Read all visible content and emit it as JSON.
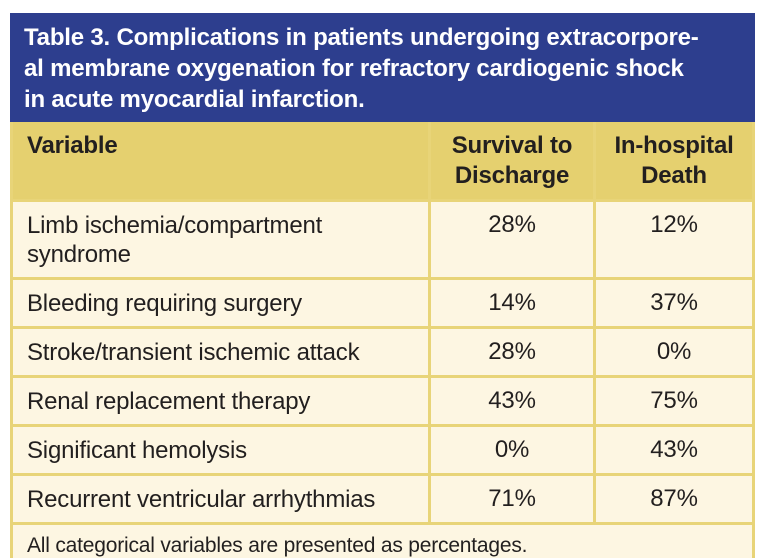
{
  "theme": {
    "header_blue": "#2d3e8e",
    "column_header_gold": "#e5d06f",
    "row_cream": "#fdf6e2",
    "border_gold": "#e8d478",
    "text_dark": "#221f1f",
    "title_white": "#ffffff",
    "page_bg": "#ffffff"
  },
  "table": {
    "title_lines": [
      "Table 3. Complications in patients undergoing extracorpore-",
      "al membrane oxygenation for refractory cardiogenic shock",
      "in acute myocardial infarction."
    ],
    "columns": {
      "variable": "Variable",
      "survival": "Survival to Discharge",
      "death": "In-hospital Death"
    },
    "rows": [
      {
        "variable": "Limb ischemia/compartment syndrome",
        "survival": "28%",
        "death": "12%"
      },
      {
        "variable": "Bleeding requiring surgery",
        "survival": "14%",
        "death": "37%"
      },
      {
        "variable": "Stroke/transient ischemic attack",
        "survival": "28%",
        "death": "0%"
      },
      {
        "variable": "Renal replacement therapy",
        "survival": "43%",
        "death": "75%"
      },
      {
        "variable": "Significant hemolysis",
        "survival": "0%",
        "death": "43%"
      },
      {
        "variable": "Recurrent ventricular arrhythmias",
        "survival": "71%",
        "death": "87%"
      }
    ],
    "footnote": "All categorical variables are presented as percentages."
  }
}
